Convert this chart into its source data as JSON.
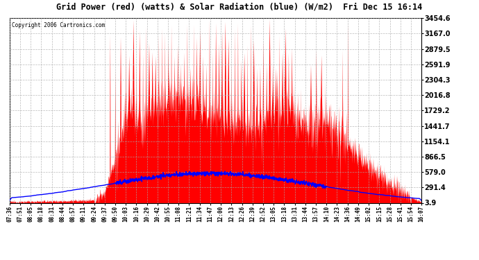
{
  "title": "Grid Power (red) (watts) & Solar Radiation (blue) (W/m2)  Fri Dec 15 16:14",
  "copyright": "Copyright 2006 Cartronics.com",
  "background_color": "#ffffff",
  "plot_background": "#ffffff",
  "grid_color": "#aaaaaa",
  "yticks": [
    3.9,
    291.4,
    579.0,
    866.5,
    1154.1,
    1441.7,
    1729.2,
    2016.8,
    2304.3,
    2591.9,
    2879.5,
    3167.0,
    3454.6
  ],
  "ymax": 3454.6,
  "ymin": 3.9,
  "x_labels": [
    "07:36",
    "07:51",
    "08:05",
    "08:18",
    "08:31",
    "08:44",
    "08:57",
    "09:11",
    "09:24",
    "09:37",
    "09:50",
    "10:03",
    "10:16",
    "10:29",
    "10:42",
    "10:55",
    "11:08",
    "11:21",
    "11:34",
    "11:47",
    "12:00",
    "12:13",
    "12:26",
    "12:39",
    "12:52",
    "13:05",
    "13:18",
    "13:31",
    "13:44",
    "13:57",
    "14:10",
    "14:23",
    "14:36",
    "14:49",
    "15:02",
    "15:15",
    "15:28",
    "15:41",
    "15:54",
    "16:07"
  ],
  "red_color": "#ff0000",
  "blue_color": "#0000ff"
}
